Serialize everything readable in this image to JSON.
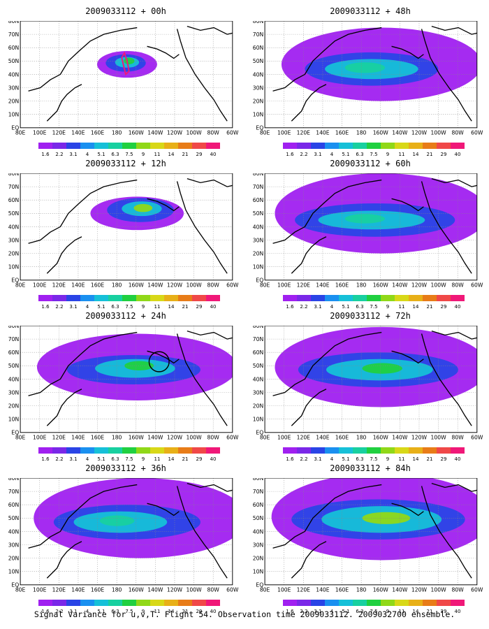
{
  "panels": [
    {
      "title": "2009033112 + 00h"
    },
    {
      "title": "2009033112 + 48h"
    },
    {
      "title": "2009033112 + 12h"
    },
    {
      "title": "2009033112 + 60h"
    },
    {
      "title": "2009033112 + 24h"
    },
    {
      "title": "2009033112 + 72h"
    },
    {
      "title": "2009033112 + 36h"
    },
    {
      "title": "2009033112 + 84h"
    }
  ],
  "map_axes": {
    "lat_labels": [
      "80N",
      "70N",
      "60N",
      "50N",
      "40N",
      "30N",
      "20N",
      "10N",
      "EQ"
    ],
    "lon_labels": [
      "80E",
      "100E",
      "120E",
      "140E",
      "160E",
      "180",
      "160W",
      "140W",
      "120W",
      "100W",
      "80W",
      "60W"
    ]
  },
  "colorbar": {
    "labels": [
      "1.6",
      "2.2",
      "3.1",
      "4",
      "5.1",
      "6.3",
      "7.5",
      "9",
      "11",
      "14",
      "21",
      "29",
      "40"
    ],
    "colors": [
      "#a020f0",
      "#7a28e8",
      "#2a44e6",
      "#1a90f0",
      "#16c0d8",
      "#18d0a0",
      "#20d040",
      "#90d818",
      "#d8d818",
      "#e8b018",
      "#e87c18",
      "#f04848",
      "#f01878"
    ]
  },
  "caption": "Signal Variance for u,v,T. Flight 54. Observation time 2009033112. 2009032700 ensemble."
}
